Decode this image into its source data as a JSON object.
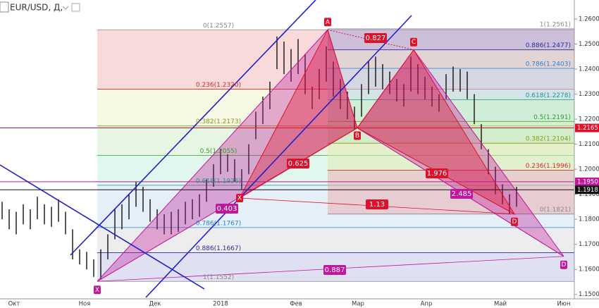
{
  "header": {
    "title": "EUR/USD, Д,"
  },
  "chart_data": {
    "type": "ohlc",
    "color": "#111111",
    "x_labels": [
      "Окт",
      "Ноя",
      "Дек",
      "2018",
      "Фев",
      "Мар",
      "Апр",
      "Май",
      "Июн"
    ],
    "highs": [
      1.187,
      1.184,
      1.183,
      1.186,
      1.184,
      1.189,
      1.186,
      1.185,
      1.188,
      1.183,
      1.176,
      1.168,
      1.167,
      1.164,
      1.168,
      1.174,
      1.184,
      1.186,
      1.19,
      1.195,
      1.193,
      1.188,
      1.184,
      1.182,
      1.183,
      1.184,
      1.187,
      1.188,
      1.19,
      1.196,
      1.202,
      1.208,
      1.206,
      1.204,
      1.2,
      1.21,
      1.223,
      1.229,
      1.235,
      1.253,
      1.251,
      1.248,
      1.252,
      1.246,
      1.233,
      1.24,
      1.249,
      1.243,
      1.236,
      1.231,
      1.225,
      1.234,
      1.243,
      1.245,
      1.242,
      1.239,
      1.236,
      1.234,
      1.245,
      1.242,
      1.237,
      1.233,
      1.23,
      1.238,
      1.241,
      1.24,
      1.239,
      1.23,
      1.218,
      1.208,
      1.201,
      1.194,
      1.19,
      1.193
    ],
    "lows": [
      1.18,
      1.176,
      1.174,
      1.178,
      1.176,
      1.18,
      1.178,
      1.177,
      1.179,
      1.174,
      1.164,
      1.162,
      1.16,
      1.157,
      1.156,
      1.164,
      1.172,
      1.176,
      1.18,
      1.185,
      1.183,
      1.179,
      1.176,
      1.174,
      1.174,
      1.175,
      1.178,
      1.18,
      1.181,
      1.187,
      1.193,
      1.198,
      1.199,
      1.195,
      1.192,
      1.198,
      1.212,
      1.218,
      1.224,
      1.24,
      1.238,
      1.235,
      1.238,
      1.23,
      1.224,
      1.228,
      1.235,
      1.229,
      1.224,
      1.22,
      1.216,
      1.221,
      1.23,
      1.233,
      1.232,
      1.23,
      1.227,
      1.225,
      1.231,
      1.23,
      1.228,
      1.225,
      1.223,
      1.228,
      1.231,
      1.231,
      1.228,
      1.218,
      1.208,
      1.198,
      1.19,
      1.186,
      1.182,
      1.185
    ],
    "ylim": [
      1.1488,
      1.2676
    ],
    "yticks": [
      {
        "value": 1.26,
        "label": "1.2600"
      },
      {
        "value": 1.25,
        "label": "1.2500"
      },
      {
        "value": 1.24,
        "label": "1.2400"
      },
      {
        "value": 1.23,
        "label": "1.2300"
      },
      {
        "value": 1.22,
        "label": "1.2200"
      },
      {
        "value": 1.21,
        "label": "1.2100"
      },
      {
        "value": 1.2,
        "label": "1.2000"
      },
      {
        "value": 1.19,
        "label": "1.1900"
      },
      {
        "value": 1.18,
        "label": "1.1800"
      },
      {
        "value": 1.17,
        "label": "1.1700"
      },
      {
        "value": 1.16,
        "label": "1.1600"
      },
      {
        "value": 1.15,
        "label": "1.1500"
      }
    ],
    "fib_retracements": [
      {
        "levels": [
          {
            "label": "0(1.2557)",
            "price": 1.2557,
            "color": "#888888"
          },
          {
            "label": "0.236(1.2320)",
            "price": 1.232,
            "color": "#d62728"
          },
          {
            "label": "0.382(1.2173)",
            "price": 1.2173,
            "color": "#8a9a1a"
          },
          {
            "label": "0.5(1.2055)",
            "price": 1.2055,
            "color": "#2ca02c"
          },
          {
            "label": "0.618(1.1936)",
            "price": 1.1936,
            "color": "#1a9a8a"
          },
          {
            "label": "0.786(1.1767)",
            "price": 1.1767,
            "color": "#2a7fd0"
          },
          {
            "label": "0.886(1.1667)",
            "price": 1.1667,
            "color": "#2a2a9a"
          },
          {
            "label": "1(1.1552)",
            "price": 1.1552,
            "color": "#888888"
          }
        ],
        "band_colors": [
          "#f2bcbc",
          "#eef3cc",
          "#d2efca",
          "#c9eedd",
          "#cde2f3",
          "#dedede",
          "#c6c6ea"
        ]
      },
      {
        "levels": [
          {
            "label": "1(1.2561)",
            "price": 1.2561,
            "color": "#888888"
          },
          {
            "label": "0.886(1.2477)",
            "price": 1.2477,
            "color": "#2a2a9a"
          },
          {
            "label": "0.786(1.2403)",
            "price": 1.2403,
            "color": "#2a7fd0"
          },
          {
            "label": "0.618(1.2278)",
            "price": 1.2278,
            "color": "#1a9a8a"
          },
          {
            "label": "0.5(1.2191)",
            "price": 1.2191,
            "color": "#2ca02c"
          },
          {
            "label": "0.382(1.2104)",
            "price": 1.2104,
            "color": "#8a9a1a"
          },
          {
            "label": "0.236(1.1996)",
            "price": 1.1996,
            "color": "#d62728"
          },
          {
            "label": "0(1.1821)",
            "price": 1.1821,
            "color": "#888888"
          }
        ],
        "band_colors": [
          "#a9a9d9",
          "#cfcfcf",
          "#b7d3ea",
          "#b3e3cf",
          "#bfe6b6",
          "#e2ebb6",
          "#e9b1b1"
        ]
      }
    ],
    "patterns": [
      {
        "color": "#c0189a",
        "points": [
          {
            "label": "X",
            "price": 1.1552
          },
          {
            "label": null,
            "price": 1.2557
          },
          {
            "label": null,
            "price": 1.2165
          },
          {
            "label": null,
            "price": 1.2477
          },
          {
            "label": "D",
            "price": 1.1652
          }
        ],
        "ratios": [
          0.403,
          2.485,
          0.887
        ]
      },
      {
        "color": "#e0102a",
        "points": [
          {
            "label": "X",
            "price": 1.1885
          },
          {
            "label": "A",
            "price": 1.2557
          },
          {
            "label": "B",
            "price": 1.2165
          },
          {
            "label": "C",
            "price": 1.2477
          },
          {
            "label": "D",
            "price": 1.1821
          }
        ],
        "ratios": [
          0.827,
          0.625,
          1.976,
          1.13
        ]
      }
    ],
    "price_lines": [
      {
        "label": "1.2165",
        "price": 1.2165,
        "color": "#e0102a"
      },
      {
        "label": "1.1950",
        "price": 1.195,
        "color": "#c0189a"
      },
      {
        "label": "1.1918",
        "price": 1.1918,
        "color": "#111111"
      }
    ]
  }
}
